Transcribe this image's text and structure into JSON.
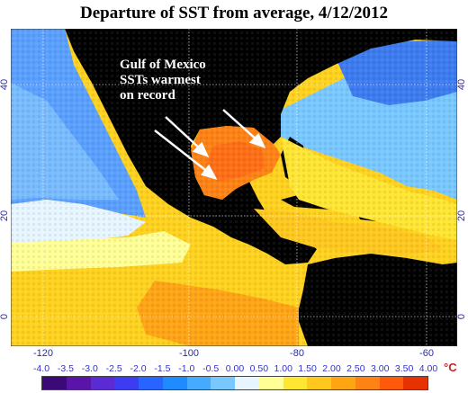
{
  "title": "Departure of SST from average, 4/12/2012",
  "annotation": [
    "Gulf of Mexico",
    "SSTs warmest",
    "on record"
  ],
  "map": {
    "x_ticks": [
      "-120",
      "-100",
      "-80",
      "-60"
    ],
    "y_ticks_left": [
      "40",
      "20",
      "0"
    ],
    "y_ticks_right": [
      "40",
      "20",
      "0"
    ]
  },
  "colorbar": {
    "labels": [
      "-4.0",
      "-3.5",
      "-3.0",
      "-2.5",
      "-2.0",
      "-1.5",
      "-1.0",
      "-0.5",
      "0.00",
      "0.50",
      "1.00",
      "1.50",
      "2.00",
      "2.50",
      "3.00",
      "3.50",
      "4.00"
    ],
    "unit": "°C",
    "colors": [
      "#3c0a78",
      "#5a14a8",
      "#5a2ad2",
      "#3c3cf0",
      "#2864ff",
      "#1e8cff",
      "#46aaff",
      "#78c8ff",
      "#e6f5ff",
      "#ffff96",
      "#ffe632",
      "#ffc81e",
      "#ffa514",
      "#ff8214",
      "#ff5a0a",
      "#e63200"
    ]
  }
}
